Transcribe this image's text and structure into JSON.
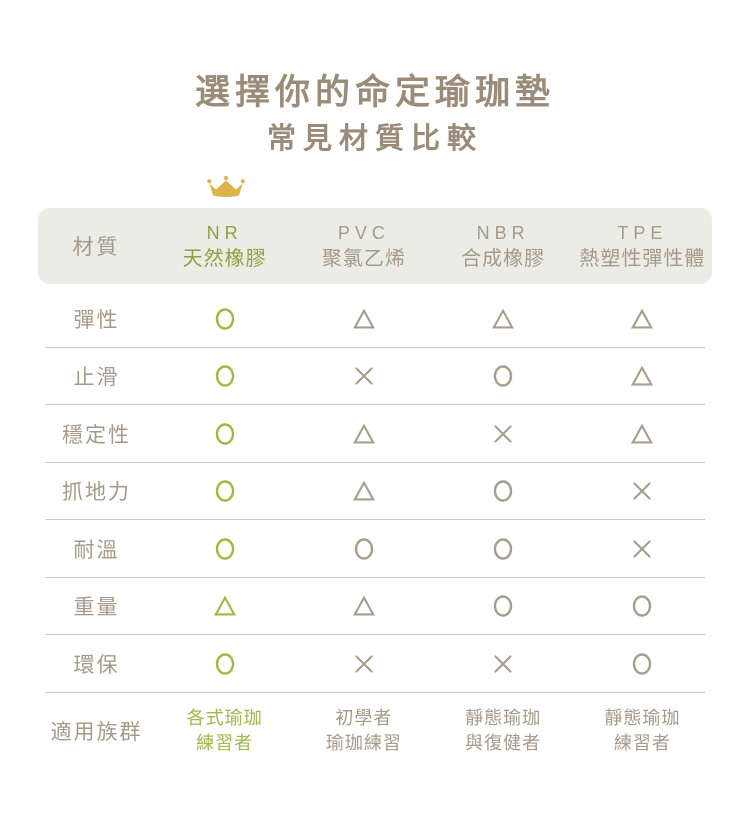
{
  "title": "選擇你的命定瑜珈墊",
  "subtitle": "常見材質比較",
  "colors": {
    "accent_green": "#9db93e",
    "header_green": "#8fa13e",
    "symbol_brown": "#a89d8c",
    "text_brown": "#a59a88",
    "title_brown": "#9b8c7a",
    "header_bg": "#ebece5",
    "divider": "#d0cabe",
    "crown_gold": "#d9b54a"
  },
  "table": {
    "corner_label": "材質",
    "columns": [
      {
        "code": "NR",
        "name": "天然橡膠",
        "highlight": true
      },
      {
        "code": "PVC",
        "name": "聚氯乙烯",
        "highlight": false
      },
      {
        "code": "NBR",
        "name": "合成橡膠",
        "highlight": false
      },
      {
        "code": "TPE",
        "name": "熱塑性彈性體",
        "highlight": false
      }
    ],
    "rows": [
      {
        "label": "彈性",
        "cells": [
          "circle",
          "triangle",
          "triangle",
          "triangle"
        ]
      },
      {
        "label": "止滑",
        "cells": [
          "circle",
          "cross",
          "circle",
          "triangle"
        ]
      },
      {
        "label": "穩定性",
        "cells": [
          "circle",
          "triangle",
          "cross",
          "triangle"
        ]
      },
      {
        "label": "抓地力",
        "cells": [
          "circle",
          "triangle",
          "circle",
          "cross"
        ]
      },
      {
        "label": "耐溫",
        "cells": [
          "circle",
          "circle",
          "circle",
          "cross"
        ]
      },
      {
        "label": "重量",
        "cells": [
          "triangle",
          "triangle",
          "circle",
          "circle"
        ]
      },
      {
        "label": "環保",
        "cells": [
          "circle",
          "cross",
          "cross",
          "circle"
        ]
      }
    ],
    "footer_row": {
      "label": "適用族群",
      "cells": [
        "各式瑜珈\n練習者",
        "初學者\n瑜珈練習",
        "靜態瑜珈\n與復健者",
        "靜態瑜珈\n練習者"
      ]
    }
  },
  "chart_data": {
    "type": "table",
    "title": "選擇你的命定瑜珈墊",
    "subtitle": "常見材質比較",
    "row_header": "材質",
    "columns": [
      "NR 天然橡膠",
      "PVC 聚氯乙烯",
      "NBR 合成橡膠",
      "TPE 熱塑性彈性體"
    ],
    "recommended_column": "NR 天然橡膠",
    "rows": [
      {
        "label": "彈性",
        "values": [
          "O",
          "△",
          "△",
          "△"
        ]
      },
      {
        "label": "止滑",
        "values": [
          "O",
          "✕",
          "O",
          "△"
        ]
      },
      {
        "label": "穩定性",
        "values": [
          "O",
          "△",
          "✕",
          "△"
        ]
      },
      {
        "label": "抓地力",
        "values": [
          "O",
          "△",
          "O",
          "✕"
        ]
      },
      {
        "label": "耐溫",
        "values": [
          "O",
          "O",
          "O",
          "✕"
        ]
      },
      {
        "label": "重量",
        "values": [
          "△",
          "△",
          "O",
          "O"
        ]
      },
      {
        "label": "環保",
        "values": [
          "O",
          "✕",
          "✕",
          "O"
        ]
      },
      {
        "label": "適用族群",
        "values": [
          "各式瑜珈練習者",
          "初學者瑜珈練習",
          "靜態瑜珈與復健者",
          "靜態瑜珈練習者"
        ]
      }
    ]
  }
}
